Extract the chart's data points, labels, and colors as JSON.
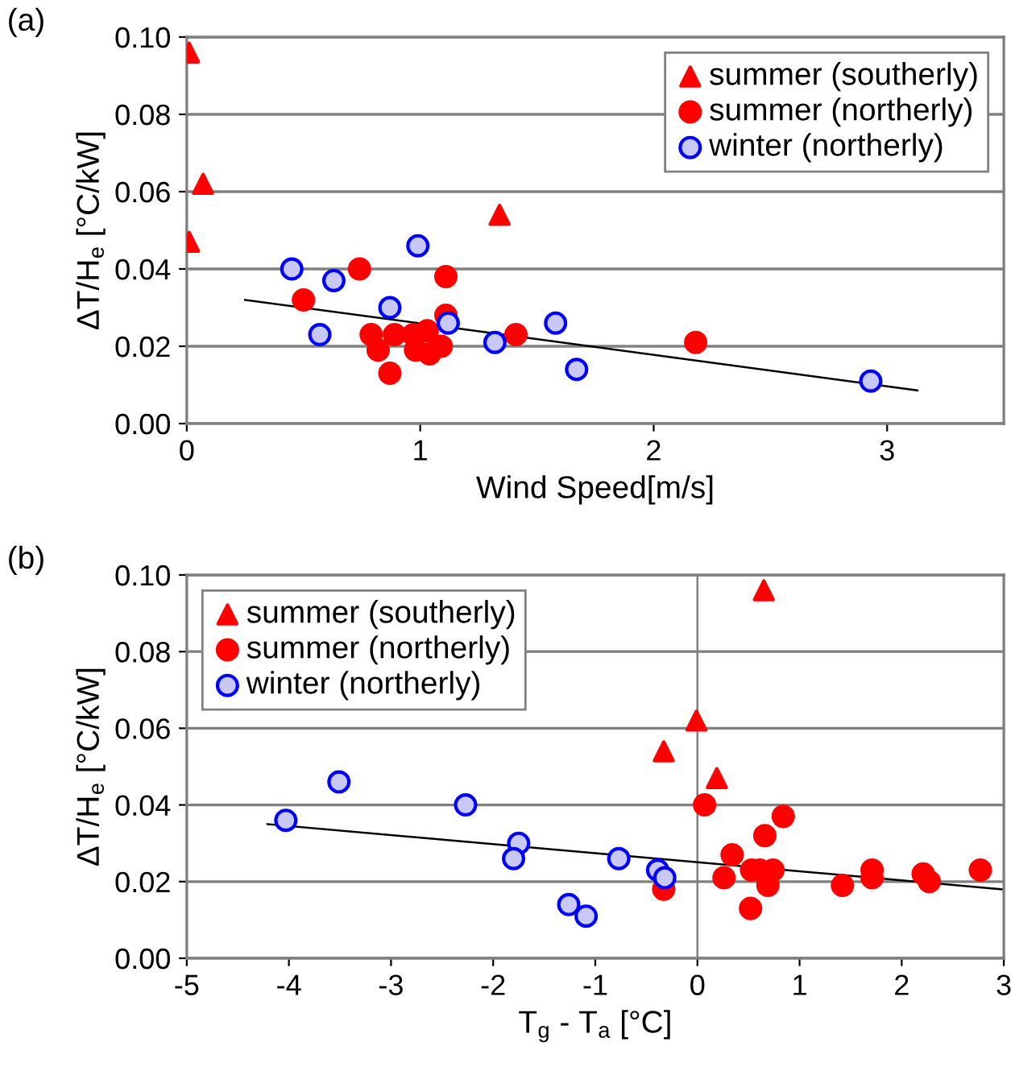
{
  "chart_data": [
    {
      "type": "scatter",
      "xlabel": "Wind Speed[m/s]",
      "ylabel": "ΔT/H$_{e}$ [°C/kW]",
      "annotations": [
        "(a)"
      ],
      "xlim": [
        0,
        3.5
      ],
      "xticks": [
        0,
        1,
        2,
        3
      ],
      "ylim": [
        0,
        0.1
      ],
      "yticks": [
        {
          "value": 0,
          "label": "0.00"
        },
        {
          "value": 0.02,
          "label": "0.02"
        },
        {
          "value": 0.04,
          "label": "0.04"
        },
        {
          "value": 0.06,
          "label": "0.06"
        },
        {
          "value": 0.08,
          "label": "0.08"
        },
        {
          "value": 0.1,
          "label": "0.10"
        }
      ],
      "grid": "y",
      "legend": "top right",
      "series": [
        {
          "name": "summer (southerly)",
          "marker": "triangle",
          "color": "#ff0000",
          "x": [
            0.01,
            0.07,
            0.01,
            1.34
          ],
          "values": [
            0.096,
            0.062,
            0.047,
            0.054
          ]
        },
        {
          "name": "summer (northerly)",
          "marker": "circle",
          "color": "#ff0000",
          "x": [
            0.5,
            0.74,
            1.11,
            1.11,
            0.79,
            0.82,
            0.89,
            0.87,
            0.97,
            0.98,
            1.03,
            1.04,
            1.09,
            1.41,
            2.18
          ],
          "values": [
            0.032,
            0.04,
            0.038,
            0.028,
            0.023,
            0.019,
            0.023,
            0.013,
            0.023,
            0.019,
            0.024,
            0.018,
            0.02,
            0.023,
            0.021
          ]
        },
        {
          "name": "winter (northerly)",
          "marker": "circle",
          "color": "#c8c8f4",
          "x": [
            0.45,
            0.63,
            0.57,
            0.87,
            0.99,
            1.12,
            1.32,
            1.58,
            1.67,
            2.93
          ],
          "values": [
            0.04,
            0.037,
            0.023,
            0.03,
            0.046,
            0.026,
            0.021,
            0.026,
            0.014,
            0.011
          ]
        },
        {
          "type": "line",
          "marker": "none",
          "color": "#000000",
          "x": [
            0.25,
            3.13
          ],
          "values": [
            0.032,
            0.0086
          ]
        }
      ]
    },
    {
      "type": "scatter",
      "xlabel": "T$_{g}$ - T$_{a}$ [°C]",
      "ylabel": "ΔT/H$_{e}$ [°C/kW]",
      "annotations": [
        "(b)"
      ],
      "xlim": [
        -5,
        3
      ],
      "xticks": [
        -5,
        -4,
        -3,
        -2,
        -1,
        0,
        1,
        2,
        3
      ],
      "ylim": [
        0,
        0.1
      ],
      "yticks": [
        {
          "value": 0,
          "label": "0.00"
        },
        {
          "value": 0.02,
          "label": "0.02"
        },
        {
          "value": 0.04,
          "label": "0.04"
        },
        {
          "value": 0.06,
          "label": "0.06"
        },
        {
          "value": 0.08,
          "label": "0.08"
        },
        {
          "value": 0.1,
          "label": "0.10"
        }
      ],
      "grid": "y",
      "legend": "top left",
      "ref_lines": [
        {
          "axis": "x",
          "value": 0,
          "color": "#808080"
        }
      ],
      "series": [
        {
          "name": "summer (southerly)",
          "marker": "triangle",
          "color": "#ff0000",
          "x": [
            0.65,
            -0.01,
            -0.33,
            0.19
          ],
          "values": [
            0.096,
            0.062,
            0.054,
            0.047
          ]
        },
        {
          "name": "summer (northerly)",
          "marker": "circle",
          "color": "#ff0000",
          "x": [
            0.07,
            0.84,
            0.66,
            0.34,
            0.26,
            0.53,
            0.61,
            0.74,
            0.69,
            0.52,
            1.42,
            1.71,
            1.71,
            2.21,
            2.27,
            2.77,
            -0.33
          ],
          "values": [
            0.04,
            0.037,
            0.032,
            0.027,
            0.021,
            0.023,
            0.023,
            0.023,
            0.019,
            0.013,
            0.019,
            0.023,
            0.021,
            0.022,
            0.02,
            0.023,
            0.018
          ]
        },
        {
          "name": "winter (northerly)",
          "marker": "circle",
          "color": "#c8c8f4",
          "x": [
            -4.03,
            -3.51,
            -2.27,
            -1.75,
            -1.8,
            -0.77,
            -0.39,
            -0.32,
            -1.26,
            -1.09
          ],
          "values": [
            0.036,
            0.046,
            0.04,
            0.03,
            0.026,
            0.026,
            0.023,
            0.021,
            0.014,
            0.011
          ]
        },
        {
          "type": "line",
          "marker": "none",
          "color": "#000000",
          "x": [
            -4.21,
            2.98
          ],
          "values": [
            0.035,
            0.018
          ]
        }
      ]
    }
  ]
}
